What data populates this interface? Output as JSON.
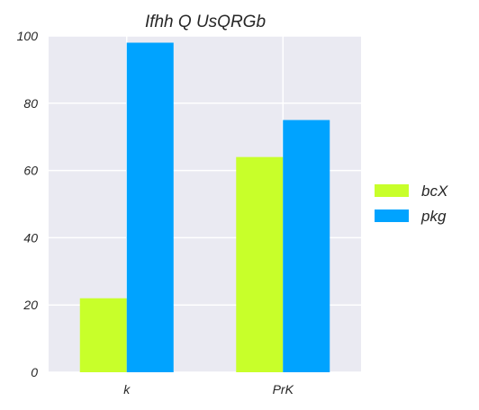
{
  "chart_data": {
    "type": "bar",
    "title": "Ifhh Q UsQRGb",
    "xlabel": "",
    "ylabel": "",
    "categories": [
      "k",
      "PrK"
    ],
    "series": [
      {
        "name": "bcX",
        "values": [
          22,
          64
        ],
        "color": "#c8ff2a"
      },
      {
        "name": "pkg",
        "values": [
          98,
          75
        ],
        "color": "#00a3ff"
      }
    ],
    "ylim": [
      0,
      100
    ],
    "yticks": [
      0,
      20,
      40,
      60,
      80,
      100
    ],
    "grid": true,
    "legend_position": "right",
    "plot_background": "#eaeaf2"
  }
}
